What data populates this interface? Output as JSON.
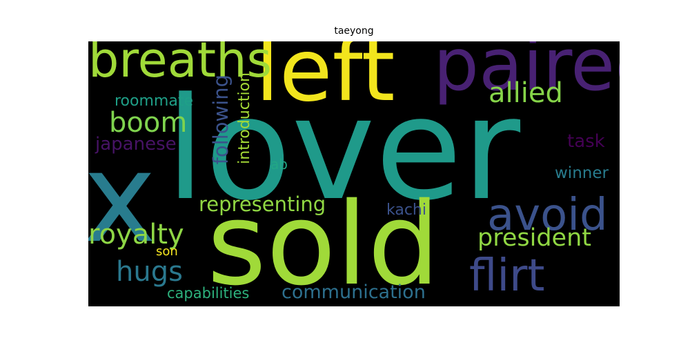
{
  "chart_data": {
    "type": "wordcloud",
    "title": "taeyong",
    "background": "#000000",
    "words": [
      {
        "text": "lover",
        "color": "#1f9a8a"
      },
      {
        "text": "sold",
        "color": "#a0da39"
      },
      {
        "text": "x",
        "color": "#287c8e"
      },
      {
        "text": "left",
        "color": "#f2e51d"
      },
      {
        "text": "paired",
        "color": "#482173"
      },
      {
        "text": "breaths",
        "color": "#a0da39"
      },
      {
        "text": "avoid",
        "color": "#3b528b"
      },
      {
        "text": "flirt",
        "color": "#3e4a89"
      },
      {
        "text": "allied",
        "color": "#86d549"
      },
      {
        "text": "boom",
        "color": "#7fd34e"
      },
      {
        "text": "royalty",
        "color": "#8ed645"
      },
      {
        "text": "president",
        "color": "#90d743"
      },
      {
        "text": "hugs",
        "color": "#2a788e"
      },
      {
        "text": "representing",
        "color": "#90d743"
      },
      {
        "text": "communication",
        "color": "#2d708e"
      },
      {
        "text": "following",
        "color": "#3b528b"
      },
      {
        "text": "introduction",
        "color": "#a5db36"
      },
      {
        "text": "japanese",
        "color": "#471365"
      },
      {
        "text": "roommate",
        "color": "#1fa088"
      },
      {
        "text": "task",
        "color": "#440154"
      },
      {
        "text": "winner",
        "color": "#287c8e"
      },
      {
        "text": "capabilities",
        "color": "#2db27d"
      },
      {
        "text": "kachi",
        "color": "#3b528b"
      },
      {
        "text": "ab",
        "color": "#22a785"
      },
      {
        "text": "son",
        "color": "#f6e620"
      }
    ]
  }
}
